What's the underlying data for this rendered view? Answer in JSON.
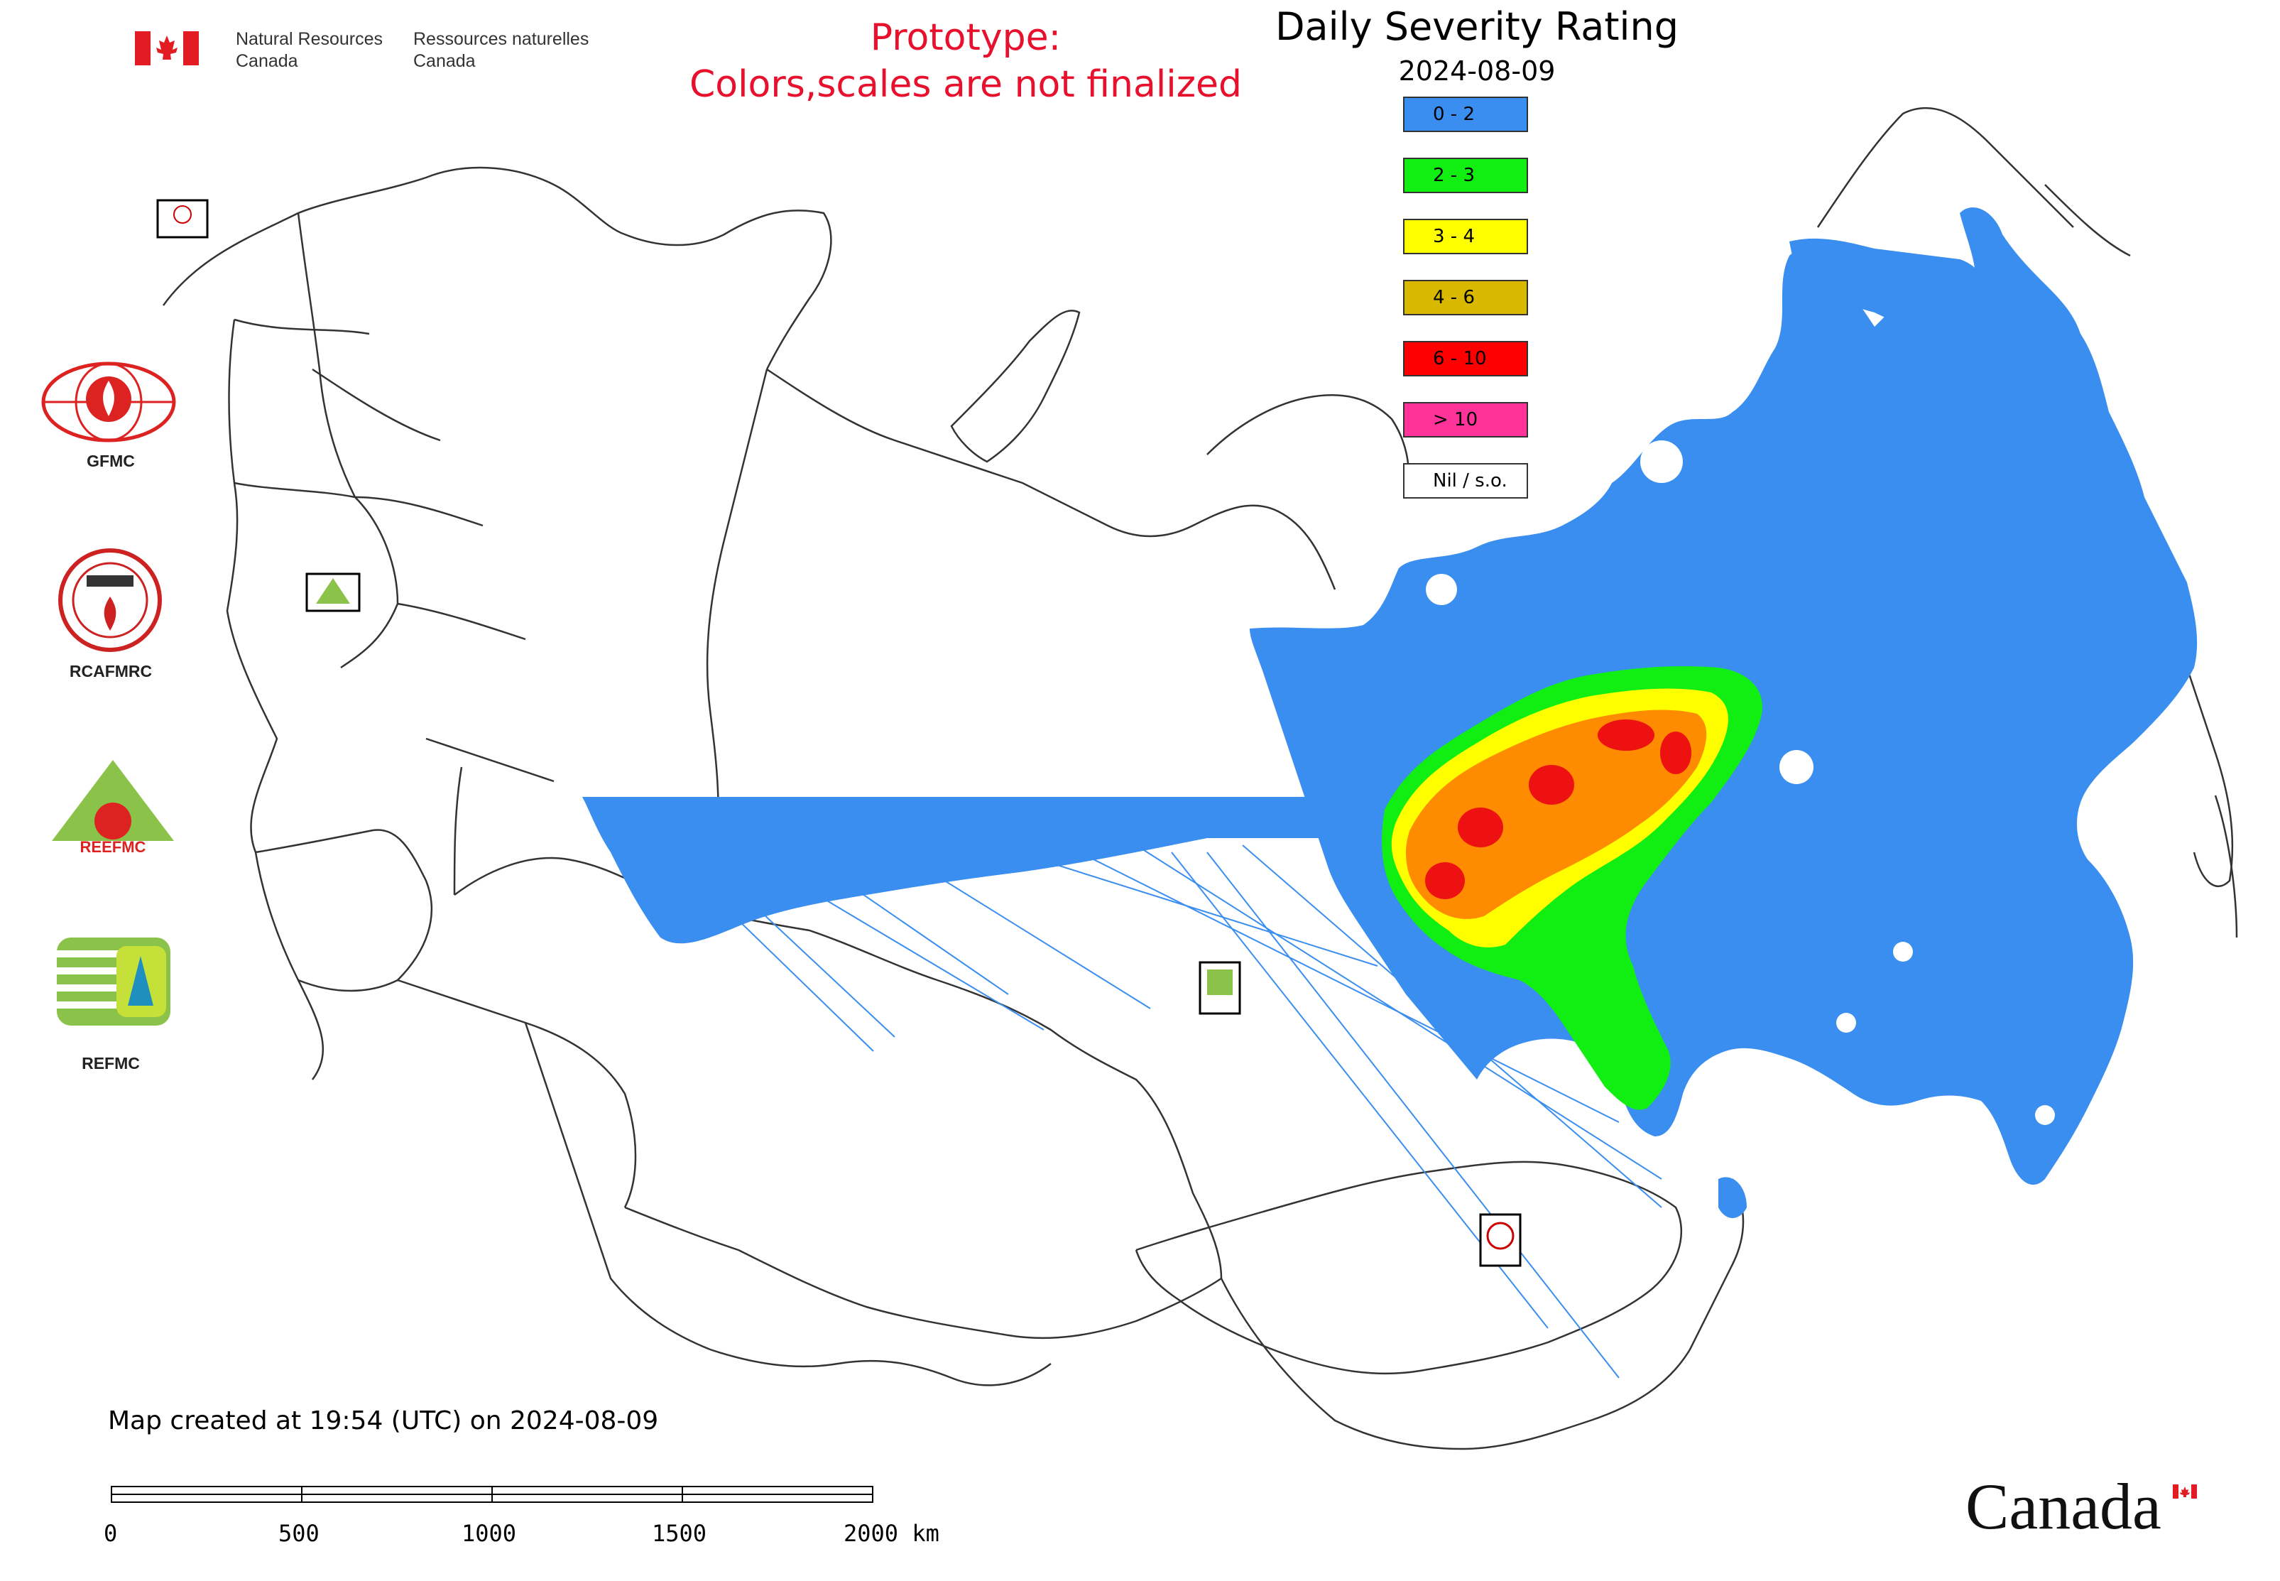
{
  "header": {
    "nrc_en_line1": "Natural Resources",
    "nrc_en_line2": "Canada",
    "nrc_fr_line1": "Ressources naturelles",
    "nrc_fr_line2": "Canada",
    "prototype_line1": "Prototype:",
    "prototype_line2": "Colors,scales are not finalized",
    "title": "Daily Severity Rating",
    "date": "2024-08-09"
  },
  "legend": {
    "items": [
      {
        "label": "0 - 2",
        "color": "#3a8ef0"
      },
      {
        "label": "2 - 3",
        "color": "#11ee11"
      },
      {
        "label": "3 - 4",
        "color": "#ffff00"
      },
      {
        "label": "4 - 6",
        "color": "#d9b800"
      },
      {
        "label": "6 - 10",
        "color": "#ff0000"
      },
      {
        "label": "> 10",
        "color": "#ff3399"
      },
      {
        "label": "Nil / s.o.",
        "color": "#ffffff"
      }
    ]
  },
  "logos": {
    "gfmc": "GFMC",
    "rcafmrc": "RCAFMRC",
    "reefmc": "REEFMC",
    "refmc": "REFMC"
  },
  "footer": {
    "created": "Map created at 19:54 (UTC) on 2024-08-09",
    "scale_labels": [
      "0",
      "500",
      "1000",
      "1500",
      "2000 km"
    ],
    "canada_wordmark": "Canada"
  },
  "colors": {
    "prototype_text": "#e8112d",
    "map_outline": "#333333",
    "canada_red": "#e31b23",
    "orange_class": "#ff8c00"
  },
  "icons": [
    "canada-flag-icon",
    "gfmc-logo-icon",
    "rcafmrc-logo-icon",
    "reefmc-logo-icon",
    "refmc-logo-icon",
    "scale-bar"
  ]
}
